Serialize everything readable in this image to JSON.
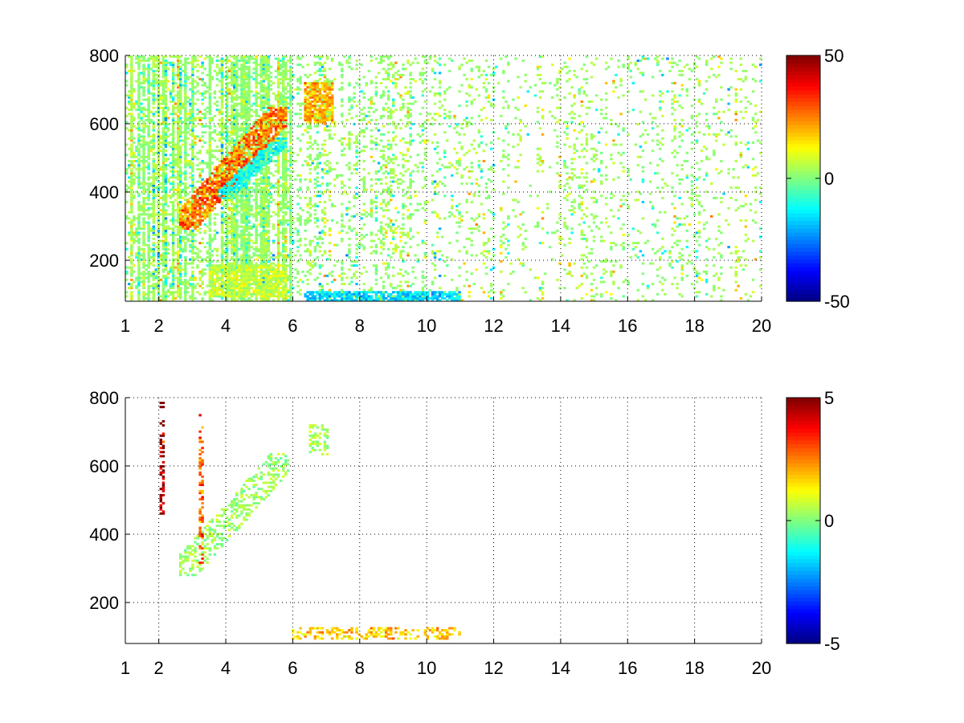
{
  "chart_data": [
    {
      "type": "heatmap",
      "title": "",
      "xlabel": "",
      "ylabel": "",
      "xlim": [
        1,
        20
      ],
      "ylim": [
        80,
        800
      ],
      "x_ticks": [
        1,
        2,
        4,
        6,
        8,
        10,
        12,
        14,
        16,
        18,
        20
      ],
      "x_tick_labels": [
        "1",
        "2",
        "4",
        "6",
        "8",
        "10",
        "12",
        "14",
        "16",
        "18",
        "20"
      ],
      "y_ticks": [
        200,
        400,
        600,
        800
      ],
      "y_tick_labels": [
        "200",
        "400",
        "600",
        "800"
      ],
      "grid": true,
      "colormap": "jet",
      "clim": [
        -50,
        50
      ],
      "colorbar_ticks": [
        -50,
        0,
        50
      ],
      "colorbar_tick_labels": [
        "-50",
        "0",
        "50"
      ],
      "colorbar_location": "right",
      "missing_color": "#ffffff",
      "features": [
        {
          "description": "main diagonal ridge",
          "x_range": [
            2.6,
            5.8
          ],
          "y_range": [
            290,
            650
          ],
          "value": 28
        },
        {
          "description": "shadow ridge",
          "x_range": [
            3.8,
            5.8
          ],
          "y_range": [
            380,
            560
          ],
          "value": -12
        },
        {
          "description": "low band",
          "x_range": [
            3.5,
            5.8
          ],
          "y_range": [
            90,
            190
          ],
          "value": 8
        },
        {
          "description": "upper blob",
          "x_range": [
            6.3,
            7.2
          ],
          "y_range": [
            600,
            720
          ],
          "value": 22
        },
        {
          "description": "bottom band",
          "x_range": [
            6.3,
            11.0
          ],
          "y_range": [
            80,
            110
          ],
          "value": -18
        }
      ]
    },
    {
      "type": "heatmap",
      "title": "",
      "xlabel": "",
      "ylabel": "",
      "xlim": [
        1,
        20
      ],
      "ylim": [
        80,
        800
      ],
      "x_ticks": [
        1,
        2,
        4,
        6,
        8,
        10,
        12,
        14,
        16,
        18,
        20
      ],
      "x_tick_labels": [
        "1",
        "2",
        "4",
        "6",
        "8",
        "10",
        "12",
        "14",
        "16",
        "18",
        "20"
      ],
      "y_ticks": [
        200,
        400,
        600,
        800
      ],
      "y_tick_labels": [
        "200",
        "400",
        "600",
        "800"
      ],
      "grid": true,
      "colormap": "jet",
      "clim": [
        -5,
        5
      ],
      "colorbar_ticks": [
        -5,
        0,
        5
      ],
      "colorbar_tick_labels": [
        "-5",
        "0",
        "5"
      ],
      "colorbar_location": "right",
      "missing_color": "#ffffff",
      "features": [
        {
          "description": "sparse diagonal ridge",
          "x_range": [
            2.6,
            5.9
          ],
          "y_range": [
            280,
            640
          ],
          "value": 0.3
        },
        {
          "description": "vertical streak",
          "x": 2.08,
          "y_range": [
            450,
            790
          ],
          "value": 5
        },
        {
          "description": "vertical streak",
          "x": 3.25,
          "y_range": [
            300,
            760
          ],
          "value": 3
        },
        {
          "description": "upper blob",
          "x_range": [
            6.5,
            7.1
          ],
          "y_range": [
            630,
            720
          ],
          "value": 0.5
        },
        {
          "description": "bottom band",
          "x_range": [
            6.0,
            11.0
          ],
          "y_range": [
            90,
            125
          ],
          "value": 2
        }
      ]
    }
  ]
}
